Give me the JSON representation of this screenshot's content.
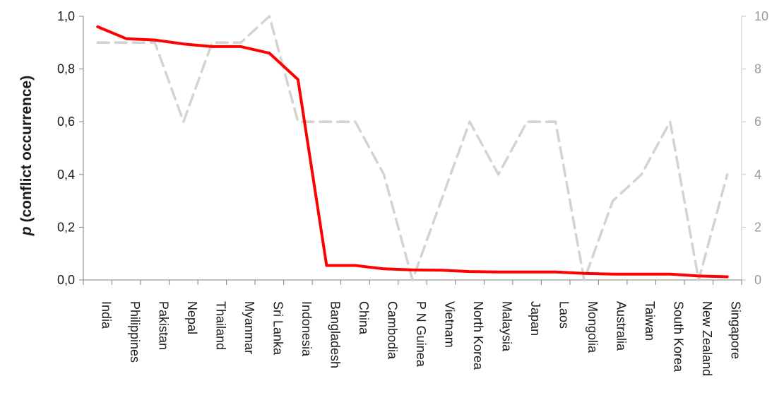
{
  "chart_data": {
    "type": "line",
    "categories": [
      "India",
      "Philippines",
      "Pakistan",
      "Nepal",
      "Thailand",
      "Myanmar",
      "Sri Lanka",
      "Indonesia",
      "Bangladesh",
      "China",
      "Cambodia",
      "P N Guinea",
      "Vietnam",
      "North Korea",
      "Malaysia",
      "Japan",
      "Laos",
      "Mongolia",
      "Australia",
      "Taiwan",
      "South Korea",
      "New Zealand",
      "Singapore"
    ],
    "ylabel_italic": "p",
    "ylabel_rest": " (conflict occurrence)",
    "ylim": [
      0,
      1
    ],
    "y_ticks": [
      "0,0",
      "0,2",
      "0,4",
      "0,6",
      "0,8",
      "1,0"
    ],
    "y2lim": [
      0,
      10
    ],
    "y2_ticks": [
      "0",
      "2",
      "4",
      "6",
      "8",
      "10"
    ],
    "series": [
      {
        "axis": "left",
        "color": "#ff0000",
        "style": "solid",
        "values": [
          0.96,
          0.915,
          0.91,
          0.895,
          0.885,
          0.885,
          0.86,
          0.76,
          0.055,
          0.055,
          0.042,
          0.038,
          0.037,
          0.032,
          0.03,
          0.03,
          0.03,
          0.025,
          0.022,
          0.022,
          0.022,
          0.015,
          0.012
        ]
      },
      {
        "axis": "right",
        "color": "#d3d3d3",
        "style": "dashed",
        "values": [
          9,
          9,
          9,
          6,
          9,
          9,
          10,
          6,
          6,
          6,
          4,
          0,
          3,
          6,
          4,
          6,
          6,
          0,
          3,
          4,
          6,
          0,
          4
        ]
      }
    ],
    "grid": false,
    "legend": "none"
  }
}
